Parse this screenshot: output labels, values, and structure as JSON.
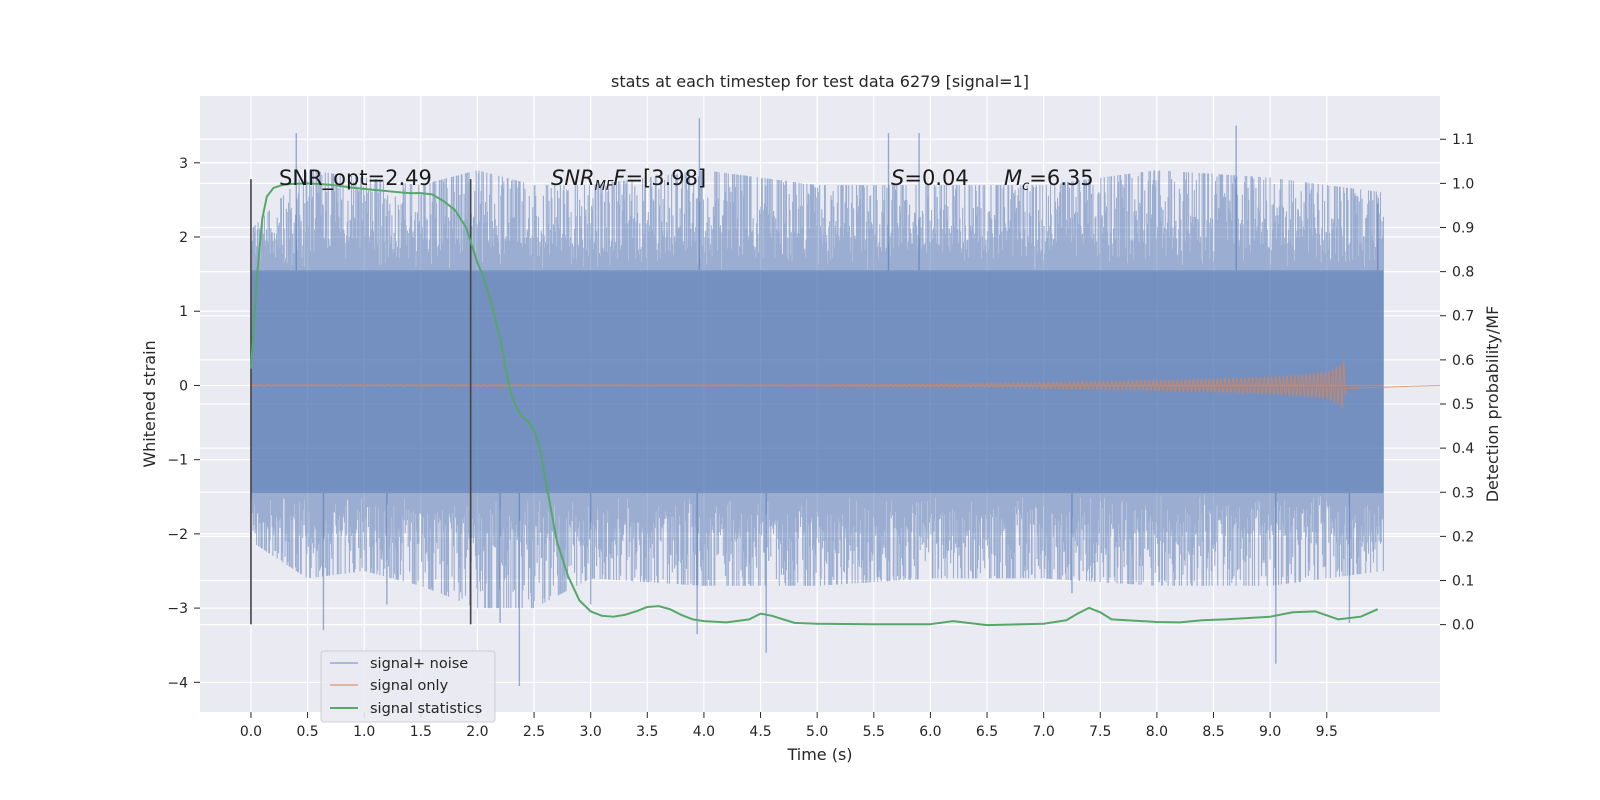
{
  "chart_data": {
    "type": "line",
    "title": "stats at each timestep for test data 6279 [signal=1]",
    "xlabel": "Time (s)",
    "ylabel": "Whitened strain",
    "y2label": "Detection probability/MF",
    "xlim": [
      -0.45,
      10.5
    ],
    "ylim": [
      -4.4,
      3.9
    ],
    "y2lim": [
      -0.198,
      1.198
    ],
    "xticks": [
      "0.0",
      "0.5",
      "1.0",
      "1.5",
      "2.0",
      "2.5",
      "3.0",
      "3.5",
      "4.0",
      "4.5",
      "5.0",
      "5.5",
      "6.0",
      "6.5",
      "7.0",
      "7.5",
      "8.0",
      "8.5",
      "9.0",
      "9.5"
    ],
    "yticks": [
      "3",
      "2",
      "1",
      "0",
      "−1",
      "−2",
      "−3",
      "−4"
    ],
    "y2ticks": [
      "1.1",
      "1.0",
      "0.9",
      "0.8",
      "0.7",
      "0.6",
      "0.5",
      "0.4",
      "0.3",
      "0.2",
      "0.1",
      "0.0"
    ],
    "grid": true,
    "legend_position": "lower-left",
    "annotations": {
      "snr_opt": "SNR_opt=2.49",
      "snr_mf_prefix": "SNR",
      "snr_mf_sub": "MF",
      "snr_mf_suffix": "=[3.98]",
      "s_prefix": "S",
      "s_suffix": "=0.04",
      "mc_prefix": "M",
      "mc_sub": "c",
      "mc_suffix": "=6.35"
    },
    "markers": [
      {
        "x": 0.0,
        "y_range": [
          -3.22,
          2.78
        ]
      },
      {
        "x": 1.94,
        "y_range": [
          -3.22,
          2.78
        ]
      }
    ],
    "series": [
      {
        "name": "signal+ noise",
        "color": "#4c72b0",
        "t_range": [
          0.0,
          10.0
        ],
        "core_band": [
          -1.45,
          1.55
        ],
        "envelope": {
          "t": [
            0.0,
            0.5,
            1.0,
            1.5,
            2.0,
            2.5,
            3.0,
            4.0,
            5.0,
            6.0,
            7.0,
            8.0,
            9.0,
            10.0
          ],
          "upper": [
            2.1,
            2.9,
            2.8,
            2.7,
            2.9,
            2.7,
            2.7,
            2.9,
            2.7,
            2.7,
            2.7,
            2.9,
            2.8,
            2.6
          ],
          "lower": [
            -2.1,
            -2.6,
            -2.5,
            -2.7,
            -3.0,
            -3.0,
            -2.6,
            -2.7,
            -2.7,
            -2.6,
            -2.6,
            -2.7,
            -2.7,
            -2.5
          ]
        },
        "spikes": [
          {
            "t": 0.4,
            "v": 3.4
          },
          {
            "t": 0.64,
            "v": -3.3
          },
          {
            "t": 1.94,
            "v": -3.1
          },
          {
            "t": 2.2,
            "v": -3.2
          },
          {
            "t": 2.37,
            "v": -4.05
          },
          {
            "t": 3.96,
            "v": 3.6
          },
          {
            "t": 3.94,
            "v": -3.35
          },
          {
            "t": 4.55,
            "v": -3.6
          },
          {
            "t": 5.63,
            "v": 3.4
          },
          {
            "t": 5.9,
            "v": 3.4
          },
          {
            "t": 8.7,
            "v": 3.5
          },
          {
            "t": 9.05,
            "v": -3.75
          },
          {
            "t": 9.7,
            "v": -3.2
          },
          {
            "t": 9.95,
            "v": 2.45
          },
          {
            "t": 7.25,
            "v": -2.8
          },
          {
            "t": 3.0,
            "v": -2.95
          },
          {
            "t": 1.2,
            "v": -2.95
          }
        ]
      },
      {
        "name": "signal only",
        "color": "#dd8452",
        "t": [
          0.0,
          5.0,
          6.0,
          7.0,
          8.0,
          8.5,
          9.0,
          9.3,
          9.5,
          9.6,
          9.65,
          9.67
        ],
        "amplitude": [
          0.01,
          0.01,
          0.02,
          0.04,
          0.07,
          0.09,
          0.12,
          0.15,
          0.19,
          0.26,
          0.33,
          0.05
        ]
      },
      {
        "name": "signal statistics",
        "color": "#55a868",
        "axis": "right",
        "x": [
          0.0,
          0.05,
          0.1,
          0.14,
          0.2,
          0.3,
          0.5,
          0.7,
          0.9,
          1.1,
          1.3,
          1.4,
          1.5,
          1.6,
          1.7,
          1.8,
          1.9,
          2.0,
          2.05,
          2.1,
          2.15,
          2.2,
          2.25,
          2.3,
          2.35,
          2.4,
          2.45,
          2.5,
          2.55,
          2.6,
          2.65,
          2.7,
          2.8,
          2.9,
          3.0,
          3.1,
          3.2,
          3.3,
          3.4,
          3.5,
          3.6,
          3.7,
          3.8,
          3.9,
          4.0,
          4.2,
          4.4,
          4.5,
          4.6,
          4.8,
          5.0,
          5.5,
          6.0,
          6.2,
          6.5,
          7.0,
          7.2,
          7.3,
          7.4,
          7.5,
          7.6,
          8.0,
          8.2,
          8.4,
          8.6,
          9.0,
          9.2,
          9.4,
          9.6,
          9.8,
          9.95
        ],
        "values": [
          0.58,
          0.78,
          0.92,
          0.97,
          0.99,
          0.998,
          1.0,
          0.997,
          0.99,
          0.985,
          0.98,
          0.978,
          0.978,
          0.975,
          0.96,
          0.94,
          0.9,
          0.82,
          0.79,
          0.75,
          0.7,
          0.65,
          0.58,
          0.52,
          0.49,
          0.47,
          0.46,
          0.44,
          0.4,
          0.33,
          0.26,
          0.19,
          0.11,
          0.055,
          0.03,
          0.02,
          0.018,
          0.022,
          0.03,
          0.04,
          0.042,
          0.035,
          0.022,
          0.012,
          0.008,
          0.005,
          0.012,
          0.025,
          0.02,
          0.004,
          0.002,
          0.001,
          0.001,
          0.008,
          -0.001,
          0.002,
          0.01,
          0.025,
          0.038,
          0.028,
          0.012,
          0.006,
          0.005,
          0.01,
          0.012,
          0.018,
          0.028,
          0.03,
          0.012,
          0.018,
          0.035
        ]
      }
    ]
  }
}
